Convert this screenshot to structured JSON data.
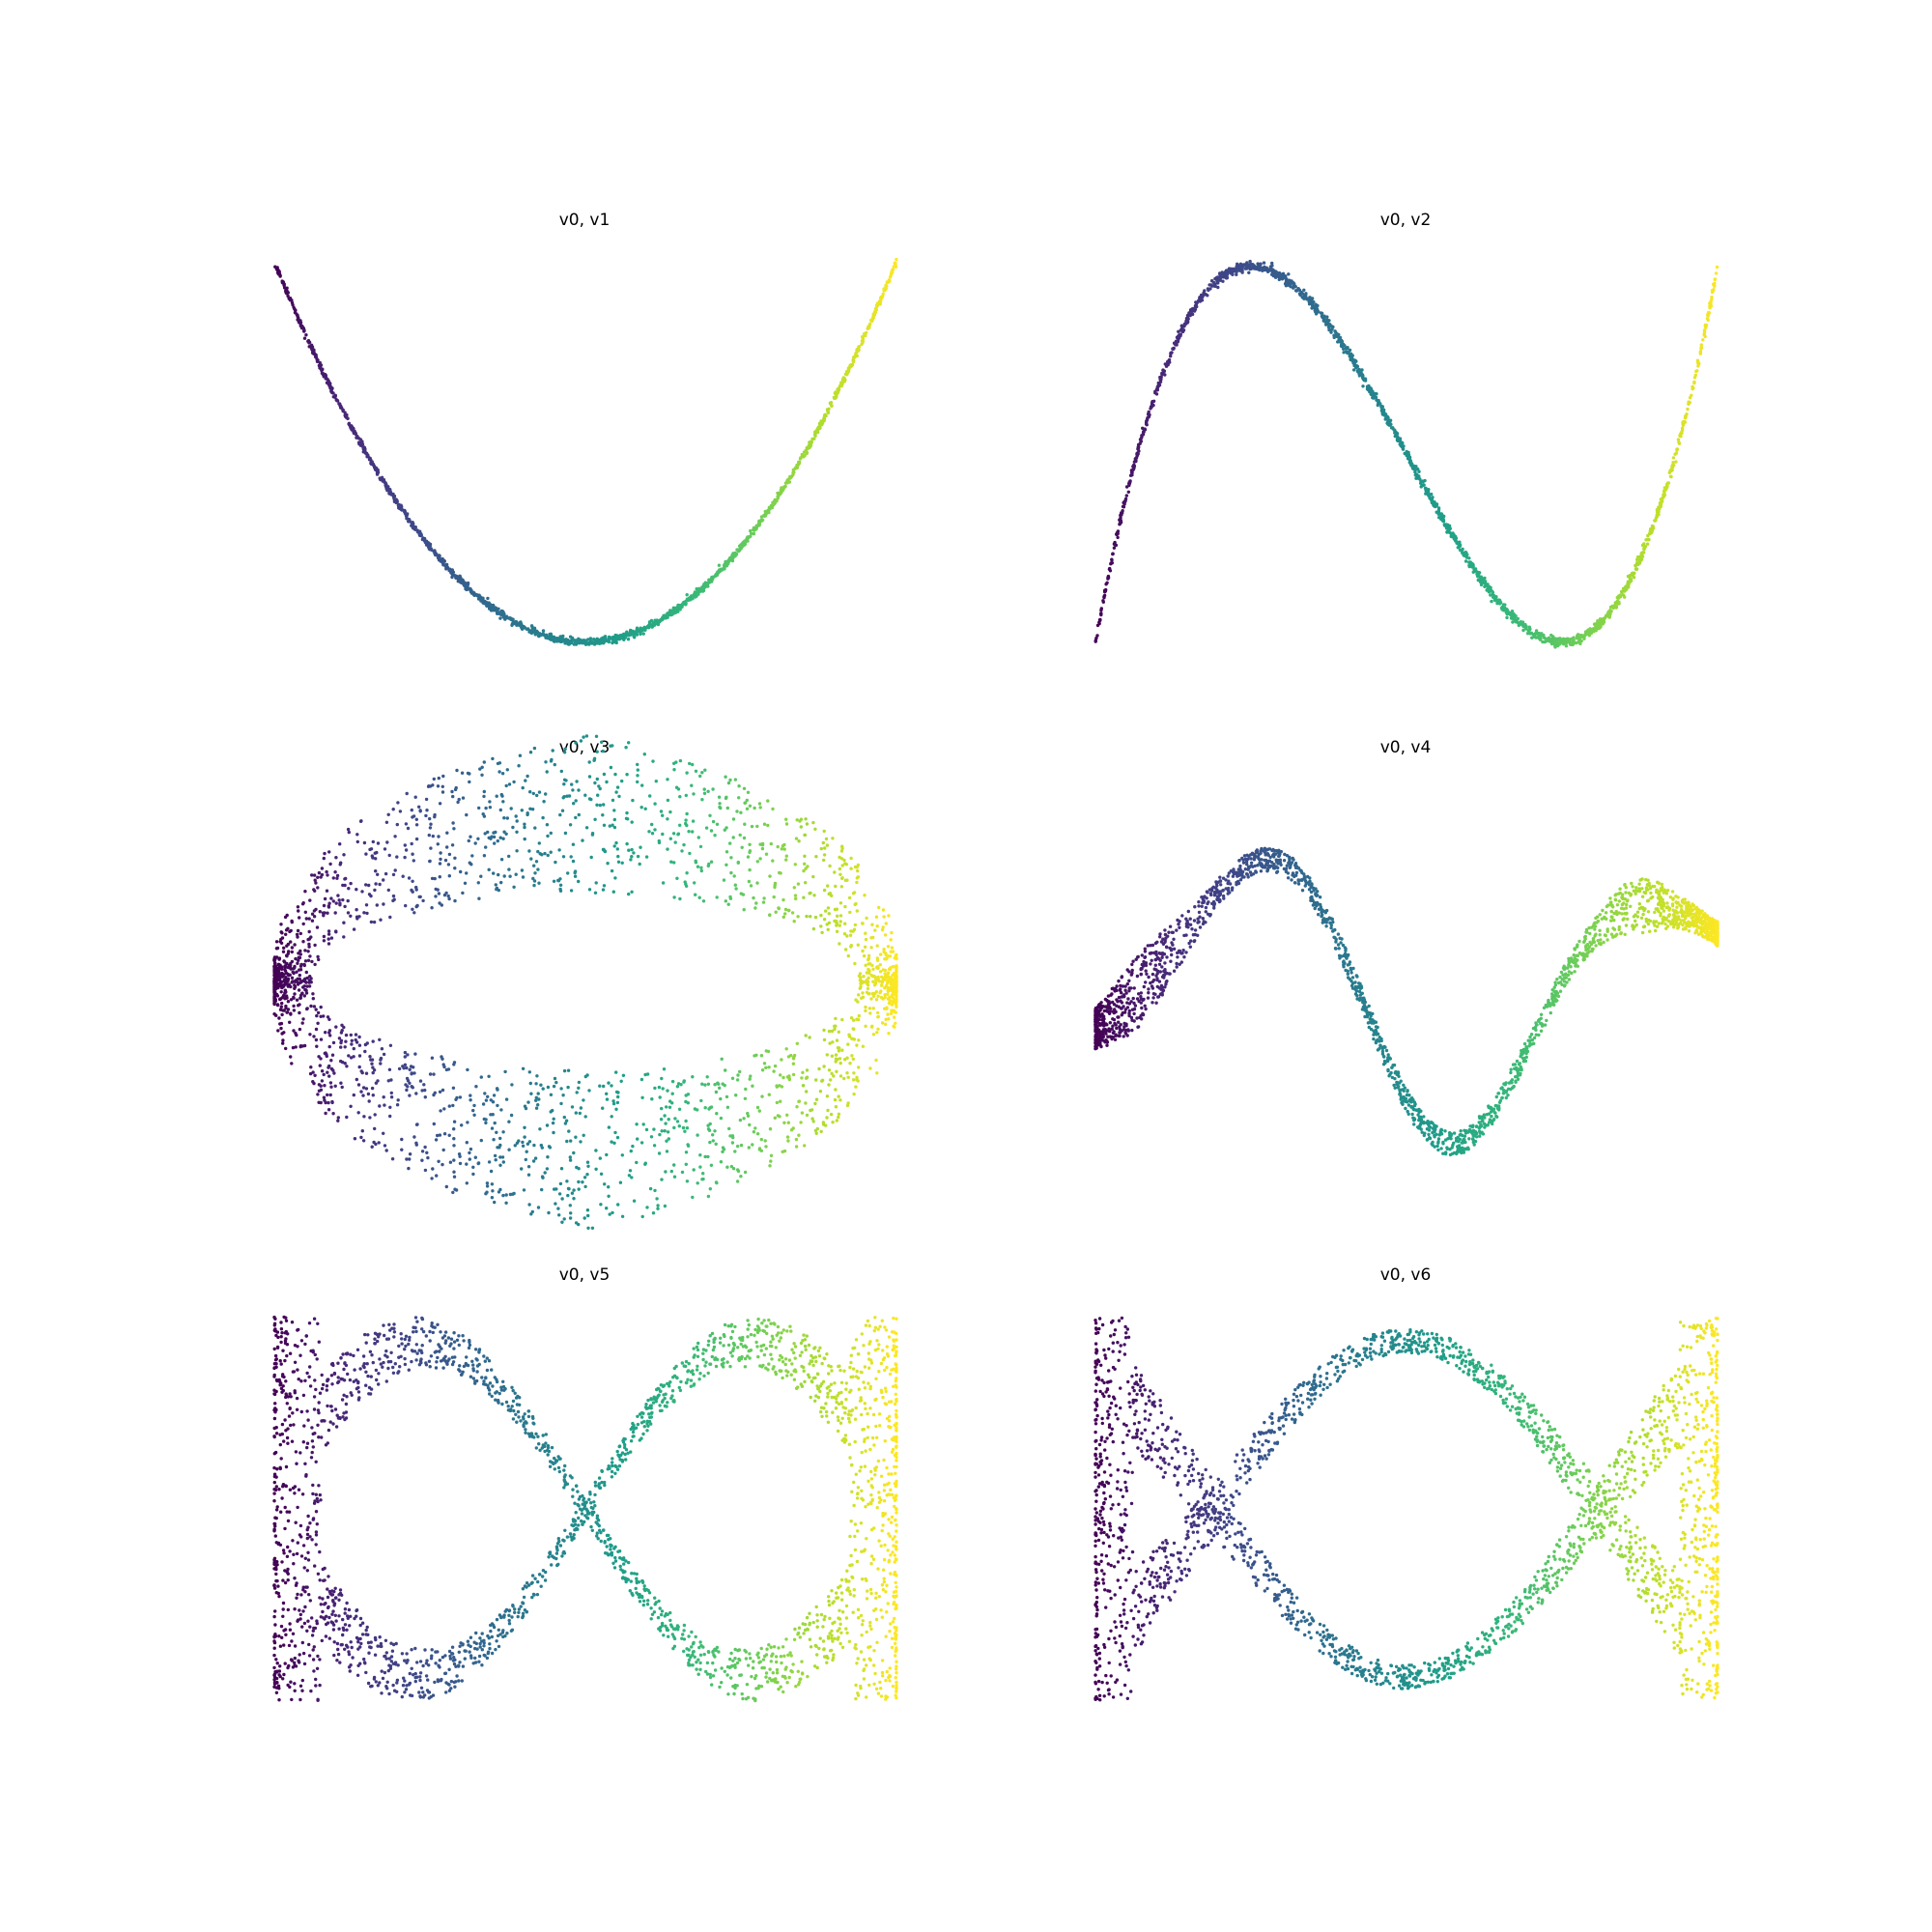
{
  "chart_data": [
    {
      "type": "scatter",
      "title": "v0, v1",
      "x_series": "v0",
      "y_series": "v1",
      "shape": "parabola",
      "spread": "thin",
      "colormap": "viridis",
      "axes_visible": false
    },
    {
      "type": "scatter",
      "title": "v0, v2",
      "x_series": "v0",
      "y_series": "v2",
      "shape": "cubic",
      "spread": "thin",
      "colormap": "viridis",
      "axes_visible": false
    },
    {
      "type": "scatter",
      "title": "v0, v3",
      "x_series": "v0",
      "y_series": "v3",
      "shape": "ring",
      "spread": "wide",
      "colormap": "viridis",
      "axes_visible": false
    },
    {
      "type": "scatter",
      "title": "v0, v4",
      "x_series": "v0",
      "y_series": "v4",
      "shape": "quartic-m",
      "spread": "medium",
      "colormap": "viridis",
      "axes_visible": false
    },
    {
      "type": "scatter",
      "title": "v0, v5",
      "x_series": "v0",
      "y_series": "v5",
      "shape": "crossing-band",
      "spread": "wide",
      "colormap": "viridis",
      "axes_visible": false
    },
    {
      "type": "scatter",
      "title": "v0, v6",
      "x_series": "v0",
      "y_series": "v6",
      "shape": "double-crossing",
      "spread": "wide",
      "colormap": "viridis",
      "axes_visible": false
    }
  ],
  "colors": {
    "background": "#ffffff",
    "title": "#000000",
    "viridis": [
      "#440154",
      "#482878",
      "#3e4989",
      "#31688e",
      "#26828e",
      "#1f9e89",
      "#35b779",
      "#6ece58",
      "#b5de2b",
      "#fde725"
    ]
  }
}
